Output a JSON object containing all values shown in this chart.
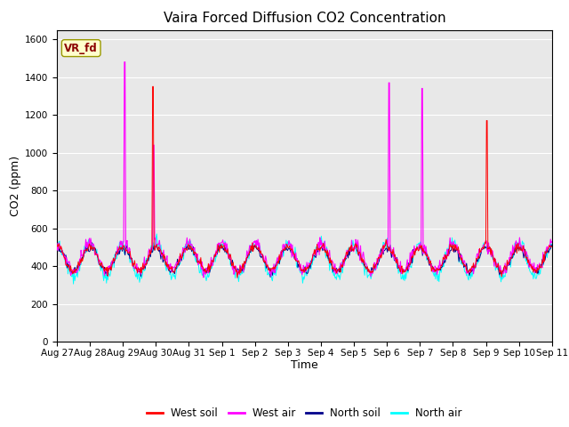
{
  "title": "Vaira Forced Diffusion CO2 Concentration",
  "xlabel": "Time",
  "ylabel": "CO2 (ppm)",
  "legend_label": "VR_fd",
  "series_labels": [
    "West soil",
    "West air",
    "North soil",
    "North air"
  ],
  "series_colors": [
    "#ff0000",
    "#ff00ff",
    "#00008b",
    "#00ffff"
  ],
  "ylim": [
    0,
    1650
  ],
  "yticks": [
    0,
    200,
    400,
    600,
    800,
    1000,
    1200,
    1400,
    1600
  ],
  "xtick_labels": [
    "Aug 27",
    "Aug 28",
    "Aug 29",
    "Aug 30",
    "Aug 31",
    "Sep 1",
    "Sep 2",
    "Sep 3",
    "Sep 4",
    "Sep 5",
    "Sep 6",
    "Sep 7",
    "Sep 8",
    "Sep 9",
    "Sep 10",
    "Sep 11"
  ],
  "n_days": 15,
  "points_per_day": 48,
  "background_color": "#e8e8e8",
  "title_fontsize": 11,
  "axis_fontsize": 9,
  "tick_fontsize": 7.5,
  "legend_fontsize": 8.5
}
